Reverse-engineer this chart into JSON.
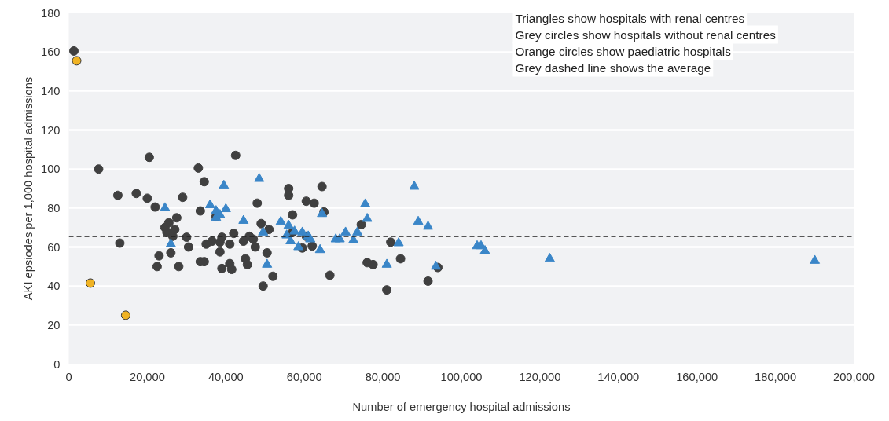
{
  "chart_data": {
    "type": "scatter",
    "xlabel": "Number of emergency hospital admissions",
    "ylabel": "AKI epsiodes per 1,000 hospital admissions",
    "xlim": [
      0,
      200000
    ],
    "ylim": [
      0,
      180
    ],
    "xticks": [
      {
        "value": 0,
        "label": "0"
      },
      {
        "value": 20000,
        "label": "20,000"
      },
      {
        "value": 40000,
        "label": "40,000"
      },
      {
        "value": 60000,
        "label": "60,000"
      },
      {
        "value": 80000,
        "label": "80,000"
      },
      {
        "value": 100000,
        "label": "100,000"
      },
      {
        "value": 120000,
        "label": "120,000"
      },
      {
        "value": 140000,
        "label": "140,000"
      },
      {
        "value": 160000,
        "label": "160,000"
      },
      {
        "value": 180000,
        "label": "180,000"
      },
      {
        "value": 200000,
        "label": "200,000"
      }
    ],
    "yticks": [
      0,
      20,
      40,
      60,
      80,
      100,
      120,
      140,
      160,
      180
    ],
    "grid": "y",
    "annotations": [
      "Triangles show hospitals with renal centres",
      "Grey circles show hospitals without renal centres",
      "Orange circles show paediatric hospitals",
      "Grey dashed line shows the average"
    ],
    "ref_lines": [
      {
        "axis": "y",
        "value": 65.5,
        "label": null,
        "color": "#222222",
        "line_style": "dashed"
      }
    ],
    "series": [
      {
        "color": "#404040",
        "marker": "circle",
        "x": [
          1300,
          7600,
          12500,
          13000,
          17200,
          20000,
          20500,
          22000,
          22500,
          23000,
          24500,
          25000,
          25500,
          26000,
          26500,
          27000,
          27500,
          28000,
          29000,
          30000,
          30500,
          33000,
          33500,
          33500,
          34500,
          34500,
          35000,
          36500,
          37500,
          38500,
          38500,
          39000,
          39000,
          41000,
          41000,
          41500,
          42000,
          42500,
          44500,
          45000,
          45500,
          46000,
          47000,
          47500,
          48000,
          49000,
          49500,
          50500,
          51000,
          52000,
          56000,
          56000,
          57000,
          57000,
          59500,
          60500,
          60500,
          62000,
          62500,
          64500,
          65000,
          66500,
          74500,
          76000,
          77500,
          81000,
          82000,
          84500,
          91500,
          94000
        ],
        "values": [
          160.5,
          100,
          86.5,
          62,
          87.5,
          85,
          106,
          80.5,
          50,
          55.5,
          70,
          67.5,
          72.5,
          57,
          65.5,
          69,
          75,
          50,
          85.5,
          65,
          60,
          100.5,
          78.5,
          52.5,
          93.5,
          52.5,
          61.5,
          63,
          75.5,
          57.5,
          62.5,
          65,
          49,
          61.5,
          51.5,
          48.5,
          67,
          107,
          63,
          54,
          51,
          65.5,
          64,
          60,
          82.5,
          72,
          40,
          57,
          69,
          45,
          90,
          86.5,
          76.5,
          67.5,
          59.5,
          83.5,
          65.5,
          60.5,
          82.5,
          91,
          78,
          45.5,
          71.5,
          52,
          51,
          38,
          62.5,
          54,
          42.5,
          49.5
        ]
      },
      {
        "color": "#f0b323",
        "marker": "circle",
        "x": [
          2000,
          5500,
          14500
        ],
        "values": [
          155.5,
          41.5,
          25
        ]
      },
      {
        "color": "#3a86c8",
        "marker": "triangle",
        "x": [
          24500,
          26000,
          36000,
          37500,
          37500,
          38500,
          39500,
          40000,
          44500,
          48500,
          49500,
          50500,
          54000,
          55500,
          56000,
          56500,
          57500,
          58500,
          59500,
          61000,
          61500,
          64000,
          64500,
          68000,
          69000,
          70500,
          72500,
          73500,
          75500,
          76000,
          81000,
          84000,
          88000,
          89000,
          91500,
          93500,
          104000,
          105000,
          106000,
          122500,
          190000
        ],
        "values": [
          80,
          61.5,
          81.5,
          78.5,
          75,
          76.5,
          91.5,
          79.5,
          73.5,
          95,
          67.5,
          51,
          73,
          66,
          71,
          63,
          68,
          60,
          67.5,
          65.5,
          64,
          58.5,
          77,
          64,
          64,
          67.5,
          63.5,
          67.5,
          82,
          74.5,
          51,
          62,
          91,
          73,
          70.5,
          50,
          60.5,
          60.5,
          58,
          54,
          53
        ]
      }
    ]
  }
}
